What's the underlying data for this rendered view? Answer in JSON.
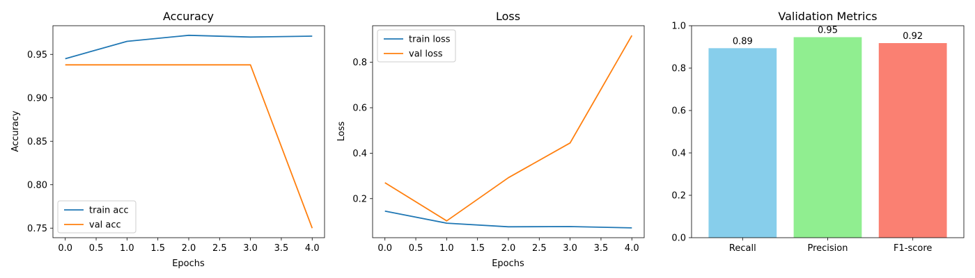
{
  "colors": {
    "blue": "#1f77b4",
    "orange": "#ff7f0e",
    "recall": "#87ceeb",
    "precision": "#90ee90",
    "f1": "#fa8072"
  },
  "chart_data": [
    {
      "type": "line",
      "title": "Accuracy",
      "xlabel": "Epochs",
      "ylabel": "Accuracy",
      "x": [
        0,
        1,
        2,
        3,
        4
      ],
      "xticks": [
        "0.0",
        "0.5",
        "1.0",
        "1.5",
        "2.0",
        "2.5",
        "3.0",
        "3.5",
        "4.0"
      ],
      "xtick_values": [
        0,
        0.5,
        1,
        1.5,
        2,
        2.5,
        3,
        3.5,
        4
      ],
      "yticks": [
        "0.75",
        "0.80",
        "0.85",
        "0.90",
        "0.95"
      ],
      "ytick_values": [
        0.75,
        0.8,
        0.85,
        0.9,
        0.95
      ],
      "xlim": [
        -0.2,
        4.2
      ],
      "ylim": [
        0.739,
        0.983
      ],
      "legend_position": "lower-left",
      "series": [
        {
          "name": "train acc",
          "values": [
            0.945,
            0.965,
            0.972,
            0.97,
            0.971
          ]
        },
        {
          "name": "val acc",
          "values": [
            0.938,
            0.938,
            0.938,
            0.938,
            0.75
          ]
        }
      ]
    },
    {
      "type": "line",
      "title": "Loss",
      "xlabel": "Epochs",
      "ylabel": "Loss",
      "x": [
        0,
        1,
        2,
        3,
        4
      ],
      "xticks": [
        "0.0",
        "0.5",
        "1.0",
        "1.5",
        "2.0",
        "2.5",
        "3.0",
        "3.5",
        "4.0"
      ],
      "xtick_values": [
        0,
        0.5,
        1,
        1.5,
        2,
        2.5,
        3,
        3.5,
        4
      ],
      "yticks": [
        "0.2",
        "0.4",
        "0.6",
        "0.8"
      ],
      "ytick_values": [
        0.2,
        0.4,
        0.6,
        0.8
      ],
      "xlim": [
        -0.2,
        4.2
      ],
      "ylim": [
        0.028,
        0.961
      ],
      "legend_position": "upper-left",
      "series": [
        {
          "name": "train loss",
          "values": [
            0.145,
            0.092,
            0.076,
            0.077,
            0.071
          ]
        },
        {
          "name": "val loss",
          "values": [
            0.27,
            0.102,
            0.292,
            0.445,
            0.918
          ]
        }
      ]
    },
    {
      "type": "bar",
      "title": "Validation Metrics",
      "categories": [
        "Recall",
        "Precision",
        "F1-score"
      ],
      "values": [
        0.894,
        0.946,
        0.918
      ],
      "data_labels": [
        "0.89",
        "0.95",
        "0.92"
      ],
      "yticks": [
        "0.0",
        "0.2",
        "0.4",
        "0.6",
        "0.8",
        "1.0"
      ],
      "ytick_values": [
        0,
        0.2,
        0.4,
        0.6,
        0.8,
        1.0
      ],
      "ylim": [
        0,
        1.0
      ]
    }
  ]
}
